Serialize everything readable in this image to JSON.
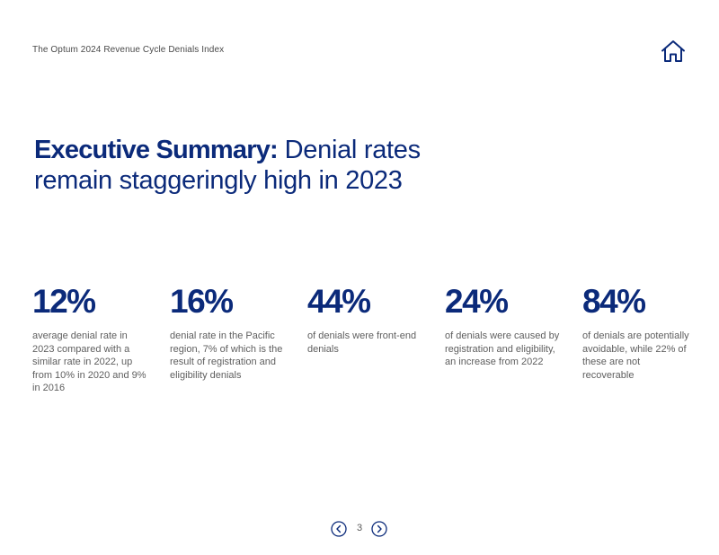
{
  "header": {
    "document_title": "The Optum 2024 Revenue Cycle Denials Index",
    "home_icon": "home-icon"
  },
  "headline": {
    "bold": "Executive Summary:",
    "line1_rest": " Denial rates",
    "line2": "remain staggeringly high in 2023"
  },
  "stats": [
    {
      "value": "12%",
      "description": "average denial rate in 2023 compared with a similar rate in 2022, up from 10% in 2020 and 9% in 2016"
    },
    {
      "value": "16%",
      "description": "denial rate in the Pacific region, 7% of which is the result of registration and eligibility denials"
    },
    {
      "value": "44%",
      "description": "of denials were front-end denials"
    },
    {
      "value": "24%",
      "description": "of denials were caused by registration and eligibility, an increase from 2022"
    },
    {
      "value": "84%",
      "description": "of denials are potentially avoidable, while 22% of these are not recoverable"
    }
  ],
  "pagination": {
    "page_number": "3",
    "prev_icon": "chevron-left-icon",
    "next_icon": "chevron-right-icon"
  },
  "colors": {
    "brand_navy": "#0b2a7a",
    "body_text": "#5e5e5e",
    "background": "#ffffff"
  }
}
